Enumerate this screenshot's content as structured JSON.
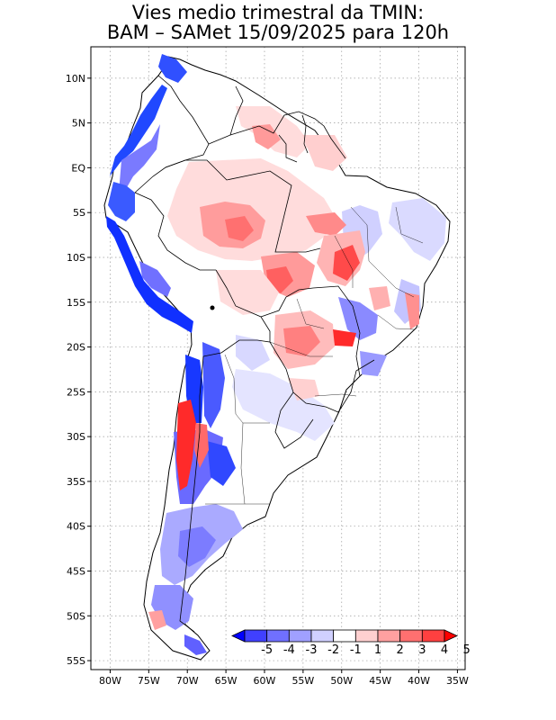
{
  "title": {
    "line1": "Vies medio trimestral da TMIN:",
    "line2": "BAM – SAMet 15/09/2025  para 120h"
  },
  "map": {
    "lon_range": [
      -82.5,
      -34
    ],
    "lat_range": [
      -56,
      13.5
    ],
    "lon_ticks": [
      "80W",
      "75W",
      "70W",
      "65W",
      "60W",
      "55W",
      "50W",
      "45W",
      "40W",
      "35W"
    ],
    "lat_ticks": [
      "10N",
      "5N",
      "EQ",
      "5S",
      "10S",
      "15S",
      "20S",
      "25S",
      "30S",
      "35S",
      "40S",
      "45S",
      "50S",
      "55S"
    ]
  },
  "colorbar": {
    "labels": [
      "-5",
      "-4",
      "-3",
      "-2",
      "-1",
      "1",
      "2",
      "3",
      "4",
      "5"
    ],
    "colors": [
      "#0000ff",
      "#4040ff",
      "#7070ff",
      "#a0a0ff",
      "#d0d0ff",
      "#ffffff",
      "#ffd0d0",
      "#ffa0a0",
      "#ff7070",
      "#ff4040",
      "#ff0000"
    ]
  },
  "palette": {
    "land": "#ffffff",
    "strong_cold": "#1030ff",
    "cold": "#7a7aff",
    "light_cold": "#d8d8ff",
    "light_warm": "#ffdede",
    "warm": "#ff9a9a",
    "strong_warm": "#ff2020",
    "border": "#000000",
    "grid": "#9a9a9a"
  }
}
